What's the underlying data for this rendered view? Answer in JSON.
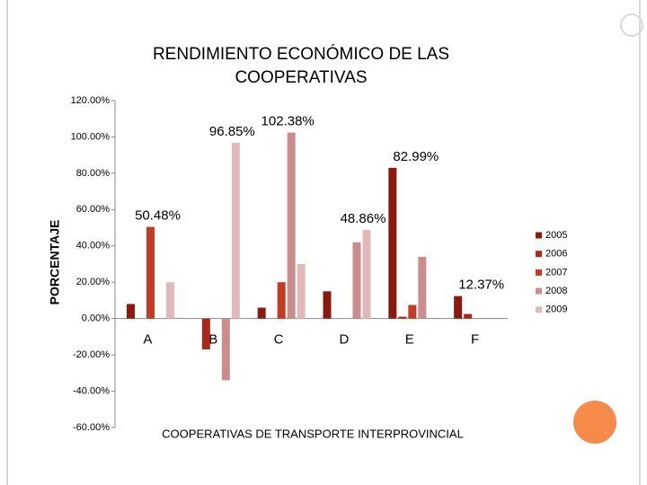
{
  "chart_data": {
    "type": "bar",
    "title": "RENDIMIENTO ECONÓMICO DE LAS COOPERATIVAS",
    "x_label": "COOPERATIVAS DE TRANSPORTE INTERPROVINCIAL",
    "y_label": "PORCENTAJE",
    "categories": [
      "A",
      "B",
      "C",
      "D",
      "E",
      "F"
    ],
    "series": [
      {
        "name": "2005",
        "color": "#8b1a0e",
        "values": [
          8,
          0,
          6,
          15,
          82.99,
          12.37
        ],
        "value_labels": [
          null,
          null,
          null,
          null,
          "82.99%",
          "12.37%"
        ]
      },
      {
        "name": "2006",
        "color": "#a8281a",
        "values": [
          0,
          -17,
          0,
          0,
          1,
          2.5
        ],
        "value_labels": [
          null,
          null,
          null,
          null,
          null,
          null
        ]
      },
      {
        "name": "2007",
        "color": "#c23b22",
        "values": [
          50.48,
          0,
          20,
          0,
          7.5,
          0
        ],
        "value_labels": [
          "50.48%",
          null,
          null,
          null,
          null,
          null
        ]
      },
      {
        "name": "2008",
        "color": "#c98d8d",
        "values": [
          0,
          -34,
          102.38,
          42,
          34,
          0
        ],
        "value_labels": [
          null,
          null,
          "102.38%",
          null,
          null,
          null
        ]
      },
      {
        "name": "2009",
        "color": "#e2b9b9",
        "values": [
          20,
          96.85,
          30,
          48.86,
          0,
          0
        ],
        "value_labels": [
          null,
          "96.85%",
          null,
          "48.86%",
          null,
          null
        ]
      }
    ],
    "ylim": [
      -60,
      120
    ],
    "yticks": [
      {
        "value": -60,
        "label": "-60.00%"
      },
      {
        "value": -40,
        "label": "-40.00%"
      },
      {
        "value": -20,
        "label": "-20.00%"
      },
      {
        "value": 0,
        "label": "0.00%"
      },
      {
        "value": 20,
        "label": "20.00%"
      },
      {
        "value": 40,
        "label": "40.00%"
      },
      {
        "value": 60,
        "label": "60.00%"
      },
      {
        "value": 80,
        "label": "80.00%"
      },
      {
        "value": 100,
        "label": "100.00%"
      },
      {
        "value": 120,
        "label": "120.00%"
      }
    ],
    "grid": false,
    "legend": "right"
  }
}
